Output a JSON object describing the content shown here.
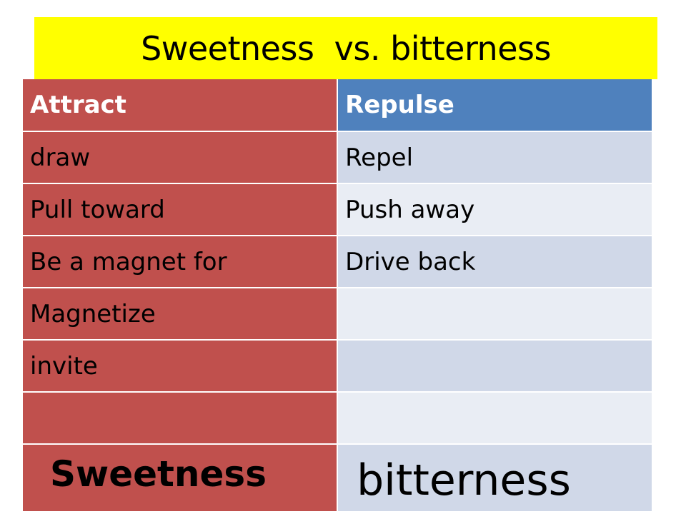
{
  "title": "Sweetness  vs. bitterness",
  "headers": {
    "left": "Attract",
    "right": "Repulse"
  },
  "rows": [
    {
      "left": "draw",
      "right": "Repel"
    },
    {
      "left": "Pull toward",
      "right": "Push away"
    },
    {
      "left": "Be a magnet for",
      "right": "Drive back"
    },
    {
      "left": "Magnetize",
      "right": ""
    },
    {
      "left": "invite",
      "right": ""
    },
    {
      "left": "",
      "right": ""
    }
  ],
  "footer": {
    "left": "Sweetness",
    "right": "bitterness"
  },
  "colors": {
    "title_bg": "#ffff00",
    "left_column": "#c0504d",
    "right_header": "#4f81bd",
    "right_band_dark": "#d0d8e8",
    "right_band_light": "#e9edf4"
  }
}
